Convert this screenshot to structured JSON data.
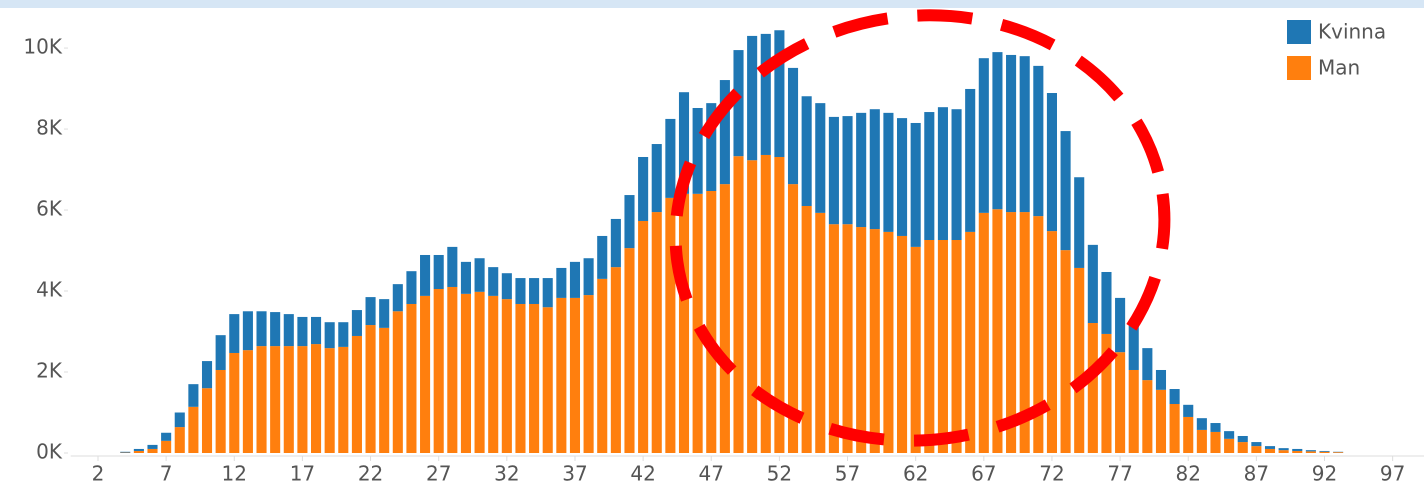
{
  "chart_data": {
    "type": "stacked_bar",
    "x": [
      4,
      5,
      6,
      7,
      8,
      9,
      10,
      11,
      12,
      13,
      14,
      15,
      16,
      17,
      18,
      19,
      20,
      21,
      22,
      23,
      24,
      25,
      26,
      27,
      28,
      29,
      30,
      31,
      32,
      33,
      34,
      35,
      36,
      37,
      38,
      39,
      40,
      41,
      42,
      43,
      44,
      45,
      46,
      47,
      48,
      49,
      50,
      51,
      52,
      53,
      54,
      55,
      56,
      57,
      58,
      59,
      60,
      61,
      62,
      63,
      64,
      65,
      66,
      67,
      68,
      69,
      70,
      71,
      72,
      73,
      74,
      75,
      76,
      77,
      78,
      79,
      80,
      81,
      82,
      83,
      84,
      85,
      86,
      87,
      88,
      89,
      90,
      91,
      92,
      93
    ],
    "series": [
      {
        "name": "Man",
        "color": "#ff7f0e",
        "values": [
          10,
          50,
          100,
          300,
          640,
          1140,
          1600,
          2050,
          2470,
          2540,
          2640,
          2640,
          2640,
          2640,
          2690,
          2590,
          2620,
          2890,
          3160,
          3090,
          3500,
          3680,
          3880,
          4050,
          4100,
          3930,
          3980,
          3880,
          3800,
          3680,
          3680,
          3600,
          3830,
          3830,
          3900,
          4300,
          4590,
          5060,
          5730,
          5950,
          6300,
          6400,
          6400,
          6470,
          6640,
          7330,
          7230,
          7360,
          7310,
          6640,
          6100,
          5930,
          5650,
          5650,
          5580,
          5530,
          5460,
          5360,
          5090,
          5260,
          5260,
          5260,
          5460,
          5930,
          6020,
          5950,
          5950,
          5850,
          5480,
          5010,
          4570,
          3210,
          2940,
          2490,
          2050,
          1800,
          1560,
          1210,
          890,
          570,
          520,
          350,
          270,
          170,
          100,
          70,
          50,
          40,
          30,
          20
        ]
      },
      {
        "name": "Kvinna",
        "color": "#1f77b4",
        "values": [
          20,
          50,
          100,
          200,
          360,
          560,
          670,
          860,
          960,
          960,
          860,
          840,
          790,
          720,
          670,
          640,
          610,
          640,
          690,
          710,
          670,
          810,
          1010,
          840,
          990,
          790,
          830,
          710,
          640,
          640,
          640,
          720,
          740,
          890,
          910,
          1060,
          1190,
          1310,
          1580,
          1680,
          1950,
          2510,
          2120,
          2170,
          2570,
          2620,
          3070,
          2990,
          3130,
          2870,
          2710,
          2710,
          2650,
          2670,
          2820,
          2960,
          2940,
          2910,
          3060,
          3160,
          3280,
          3230,
          3530,
          3820,
          3880,
          3880,
          3850,
          3710,
          3410,
          2940,
          2240,
          1930,
          1530,
          1340,
          1110,
          790,
          490,
          370,
          300,
          290,
          220,
          190,
          150,
          100,
          70,
          50,
          50,
          30,
          20,
          10
        ]
      }
    ],
    "xlim": [
      0,
      99.3
    ],
    "xticks": [
      2,
      7,
      12,
      17,
      22,
      27,
      32,
      37,
      42,
      47,
      52,
      57,
      62,
      67,
      72,
      77,
      82,
      87,
      92,
      97
    ],
    "ylim": [
      0,
      10940
    ],
    "yticks": [
      {
        "value": 0,
        "label": "0K"
      },
      {
        "value": 2000,
        "label": "2K"
      },
      {
        "value": 4000,
        "label": "4K"
      },
      {
        "value": 6000,
        "label": "6K"
      },
      {
        "value": 8000,
        "label": "8K"
      },
      {
        "value": 10000,
        "label": "10K"
      }
    ],
    "legend": "upper right"
  }
}
